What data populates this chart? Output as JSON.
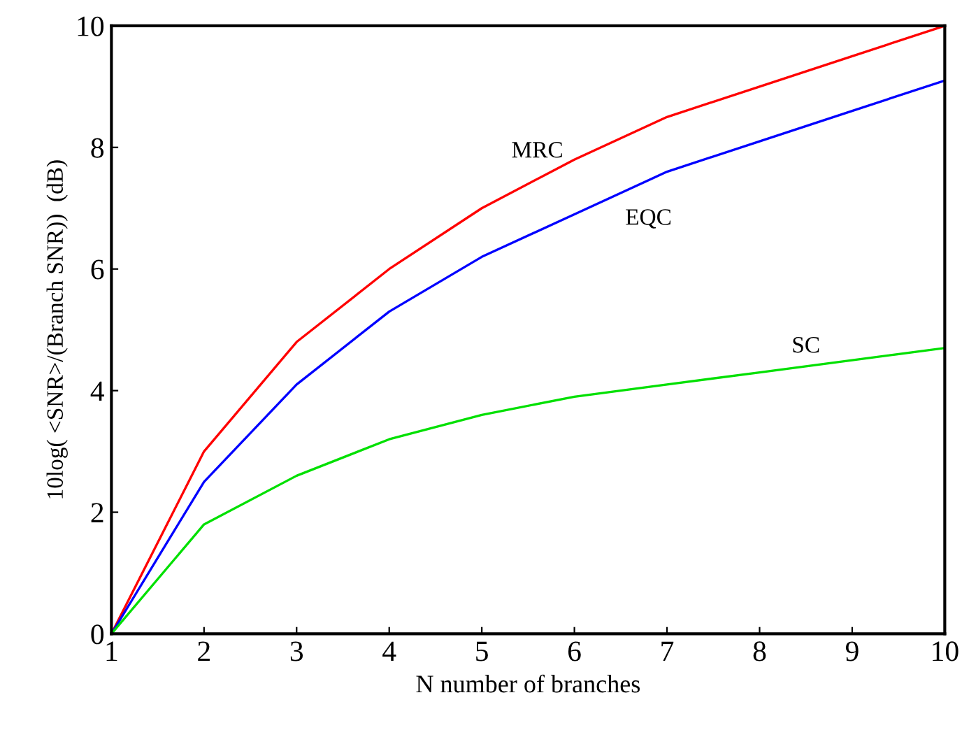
{
  "chart_data": {
    "type": "line",
    "xlabel": "N number of branches",
    "ylabel": "10log( <SNR>/(Branch SNR))  (dB)",
    "x": [
      1,
      2,
      3,
      4,
      5,
      6,
      7,
      8,
      9,
      10
    ],
    "series": [
      {
        "name": "MRC",
        "color": "#ff0000",
        "values": [
          0,
          3.0,
          4.8,
          6.0,
          7.0,
          7.8,
          8.5,
          9.0,
          9.5,
          10.0
        ]
      },
      {
        "name": "EQC",
        "color": "#0000ff",
        "values": [
          0,
          2.5,
          4.1,
          5.3,
          6.2,
          6.9,
          7.6,
          8.1,
          8.6,
          9.1
        ]
      },
      {
        "name": "SC",
        "color": "#00e000",
        "values": [
          0,
          1.8,
          2.6,
          3.2,
          3.6,
          3.9,
          4.1,
          4.3,
          4.5,
          4.7
        ]
      }
    ],
    "xlim": [
      1,
      10
    ],
    "xticks": [
      1,
      2,
      3,
      4,
      5,
      6,
      7,
      8,
      9,
      10
    ],
    "ylim": [
      0,
      10
    ],
    "yticks": [
      0,
      2,
      4,
      6,
      8,
      10
    ],
    "grid": false,
    "legend": false,
    "marker": "none",
    "line_style": "solid"
  }
}
